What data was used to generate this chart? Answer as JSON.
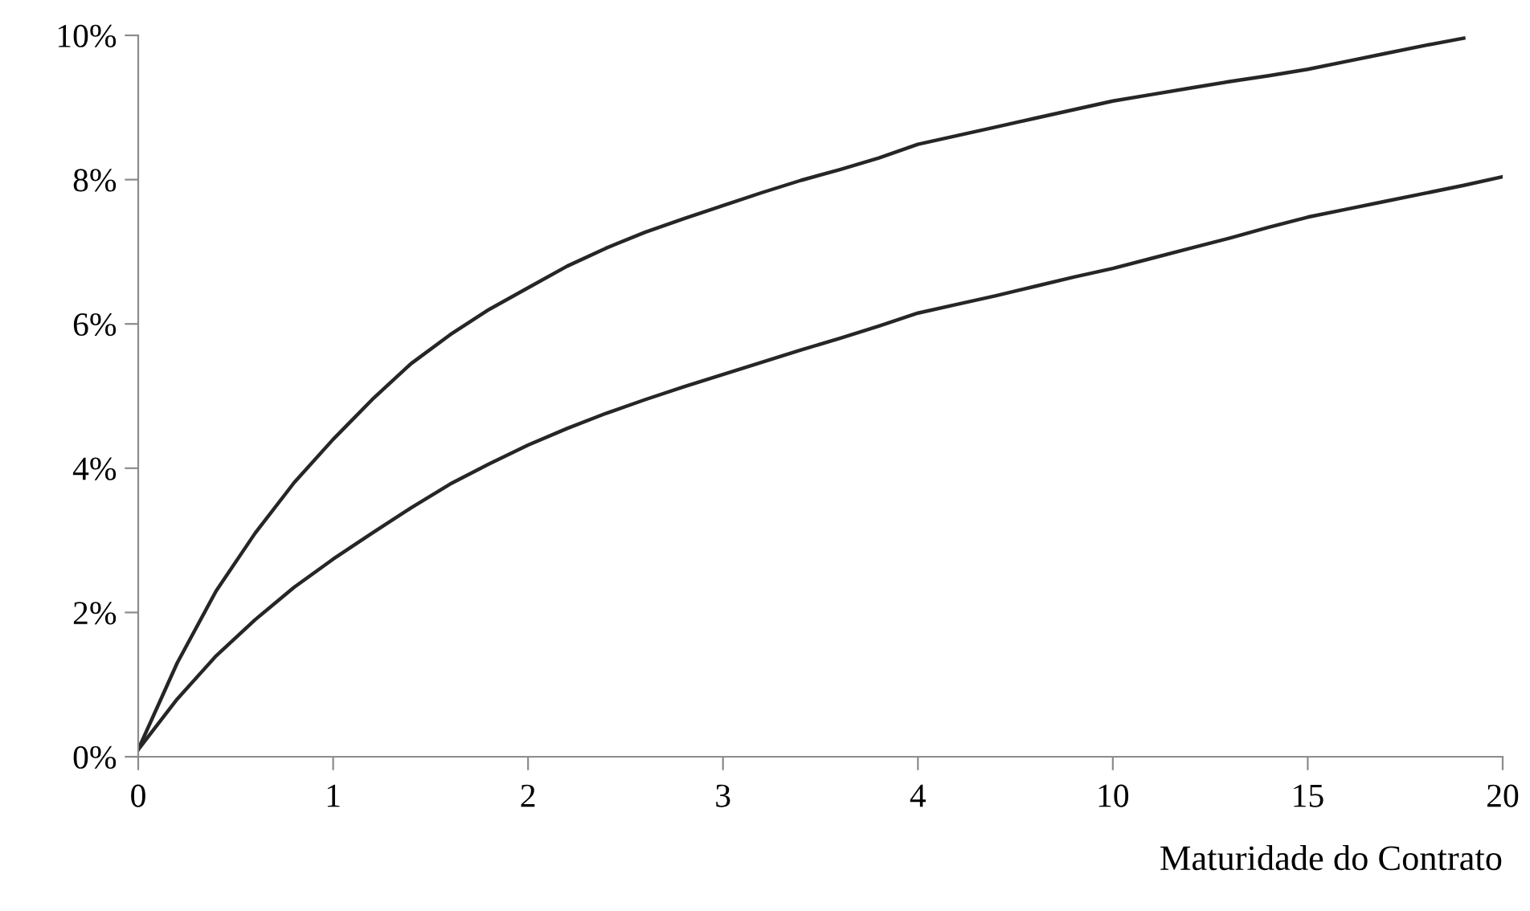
{
  "chart_data": {
    "type": "line",
    "xlabel": "Maturidade do Contrato",
    "categories": [
      "0",
      null,
      null,
      null,
      null,
      "1",
      null,
      null,
      null,
      null,
      "2",
      null,
      null,
      null,
      null,
      "3",
      null,
      null,
      null,
      null,
      "4",
      null,
      null,
      null,
      null,
      "10",
      null,
      null,
      null,
      null,
      "15",
      null,
      null,
      null,
      null,
      "20"
    ],
    "series": [
      {
        "color": "#262626",
        "values": [
          0.1,
          1.3,
          2.3,
          3.1,
          3.8,
          4.4,
          4.95,
          5.45,
          5.85,
          6.2,
          6.5,
          6.8,
          7.05,
          7.27,
          7.46,
          7.64,
          7.82,
          7.99,
          8.14,
          8.3,
          8.49,
          8.61,
          8.73,
          8.85,
          8.97,
          9.09,
          9.18,
          9.27,
          9.36,
          9.44,
          9.53,
          9.64,
          9.75,
          9.86,
          9.96,
          null
        ]
      },
      {
        "color": "#262626",
        "values": [
          0.1,
          0.8,
          1.4,
          1.9,
          2.35,
          2.74,
          3.1,
          3.45,
          3.78,
          4.06,
          4.32,
          4.55,
          4.76,
          4.95,
          5.13,
          5.3,
          5.47,
          5.64,
          5.8,
          5.97,
          6.15,
          6.27,
          6.39,
          6.52,
          6.65,
          6.77,
          6.91,
          7.05,
          7.19,
          7.34,
          7.48,
          7.59,
          7.7,
          7.81,
          7.92,
          8.04
        ]
      }
    ],
    "ylim": [
      0,
      10
    ],
    "yticks": [
      {
        "value": 0,
        "label": "0%"
      },
      {
        "value": 2,
        "label": "2%"
      },
      {
        "value": 4,
        "label": "4%"
      },
      {
        "value": 6,
        "label": "6%"
      },
      {
        "value": 8,
        "label": "8%"
      },
      {
        "value": 10,
        "label": "10%"
      }
    ],
    "grid": false,
    "legend": false,
    "marker": "none",
    "line_style": "solid"
  }
}
